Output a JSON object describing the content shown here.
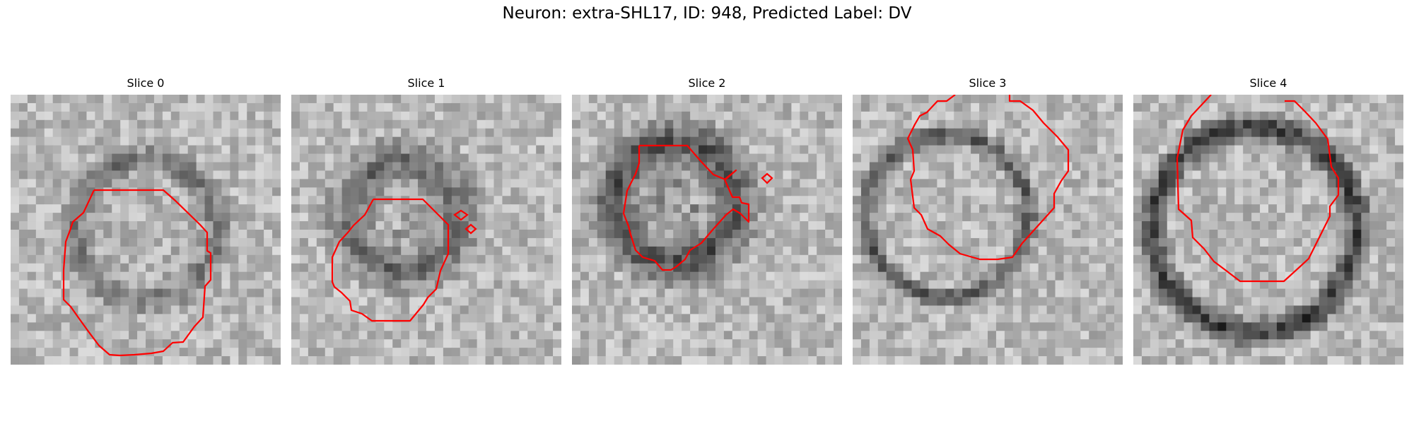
{
  "figure": {
    "suptitle": "Neuron: extra-SHL17, ID: 948, Predicted Label: DV",
    "contour_color": "#ff0000",
    "panels": [
      {
        "title": "Slice 0"
      },
      {
        "title": "Slice 1"
      },
      {
        "title": "Slice 2"
      },
      {
        "title": "Slice 3"
      },
      {
        "title": "Slice 4"
      }
    ]
  }
}
